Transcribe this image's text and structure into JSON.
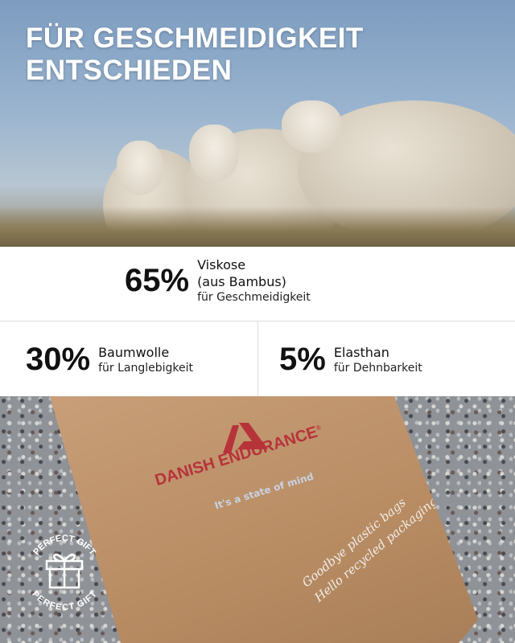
{
  "hero": {
    "title_line1": "FÜR GESCHMEIDIGKEIT",
    "title_line2": "ENTSCHIEDEN"
  },
  "stats": [
    {
      "percent": "65%",
      "material_line1": "Viskose",
      "material_line2": "(aus Bambus)",
      "benefit": "für Geschmeidigkeit"
    },
    {
      "percent": "30%",
      "material_line1": "Baumwolle",
      "benefit": "für Langlebigkeit"
    },
    {
      "percent": "5%",
      "material_line1": "Elasthan",
      "benefit": "für Dehnbarkeit"
    }
  ],
  "packaging": {
    "brand": "DANISH ENDURANCE",
    "registered": "®",
    "tagline": "It's a state of mind",
    "script_line1": "Goodbye plastic bags",
    "script_line2": "Hello recycled packaging",
    "badge_top": "PERFECT GIFT",
    "badge_bottom": "PERFECT GIFT",
    "badge_icon": "gift-icon"
  },
  "colors": {
    "brand_red": "#b7333a",
    "kraft": "#b88c63",
    "sky": "#9ab4cf"
  }
}
